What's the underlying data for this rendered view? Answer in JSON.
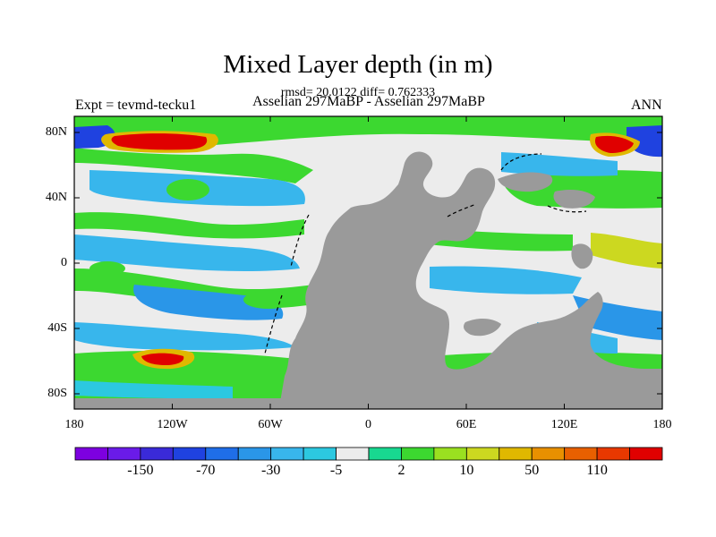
{
  "header": {
    "title": "Mixed Layer depth (in m)",
    "stats": "rmsd= 20.0122 diff= 0.762333",
    "experiment": "Expt = tevmd-tecku1",
    "runs": "Asselian 297MaBP - Asselian 297MaBP",
    "season": "ANN"
  },
  "axes": {
    "lat_ticks": [
      "80N",
      "40N",
      "0",
      "40S",
      "80S"
    ],
    "lon_ticks": [
      "180",
      "120W",
      "60W",
      "0",
      "60E",
      "120E",
      "180"
    ]
  },
  "colorbar": {
    "colors": [
      "#7d00e0",
      "#6a1be8",
      "#3a2ad8",
      "#1f42e0",
      "#1f6ee8",
      "#2a96e8",
      "#38b6ec",
      "#2cc8e0",
      "#ececec",
      "#18d890",
      "#3cd830",
      "#9ae020",
      "#ccd820",
      "#e0b800",
      "#e89000",
      "#e86000",
      "#e83800",
      "#e00000"
    ],
    "labels": [
      "-150",
      "-70",
      "-30",
      "-5",
      "2",
      "10",
      "50",
      "110"
    ]
  },
  "map": {
    "ocean": "#ececec",
    "land": "#9a9a9a"
  }
}
